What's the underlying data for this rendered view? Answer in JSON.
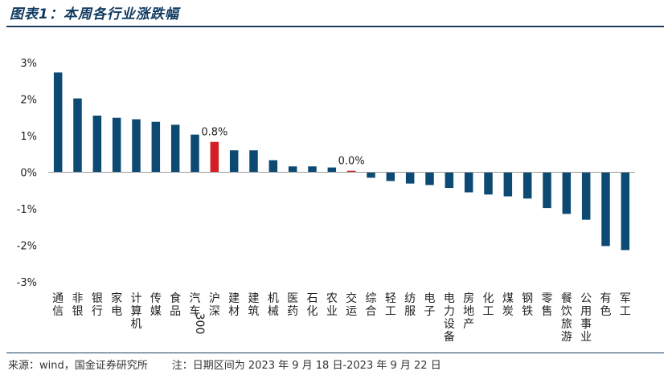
{
  "header": {
    "title": "图表1：本周各行业涨跌幅"
  },
  "footer": {
    "source": "来源：wind，国金证券研究所",
    "note": "注：日期区间为 2023 年 9 月 18 日-2023 年 9 月 22 日"
  },
  "colors": {
    "bar": "#0d4a73",
    "highlight": "#d11f26",
    "axis": "#999999"
  },
  "chart_data": {
    "type": "bar",
    "title": "本周各行业涨跌幅",
    "xlabel": "",
    "ylabel": "",
    "ylim": [
      -3,
      3
    ],
    "yticks": [
      "3%",
      "2%",
      "1%",
      "0%",
      "-1%",
      "-2%",
      "-3%"
    ],
    "categories": [
      "通信",
      "非银",
      "银行",
      "家电",
      "计算机",
      "传媒",
      "食品",
      "汽车",
      "沪深300",
      "建材",
      "建筑",
      "机械",
      "医药",
      "石化",
      "农业",
      "交运",
      "综合",
      "轻工",
      "纺服",
      "电子",
      "电力设备",
      "房地产",
      "化工",
      "煤炭",
      "钢铁",
      "零售",
      "餐饮旅游",
      "公用事业",
      "有色",
      "军工"
    ],
    "values": [
      2.73,
      2.02,
      1.55,
      1.49,
      1.45,
      1.38,
      1.3,
      1.03,
      0.83,
      0.6,
      0.6,
      0.33,
      0.16,
      0.16,
      0.13,
      0.04,
      -0.15,
      -0.24,
      -0.31,
      -0.35,
      -0.43,
      -0.55,
      -0.61,
      -0.66,
      -0.72,
      -0.98,
      -1.14,
      -1.3,
      -2.02,
      -2.13
    ],
    "highlight": [
      "沪深300",
      "交运"
    ],
    "data_labels": [
      {
        "category": "沪深300",
        "text": "0.8%"
      },
      {
        "category": "交运",
        "text": "0.0%"
      }
    ]
  }
}
